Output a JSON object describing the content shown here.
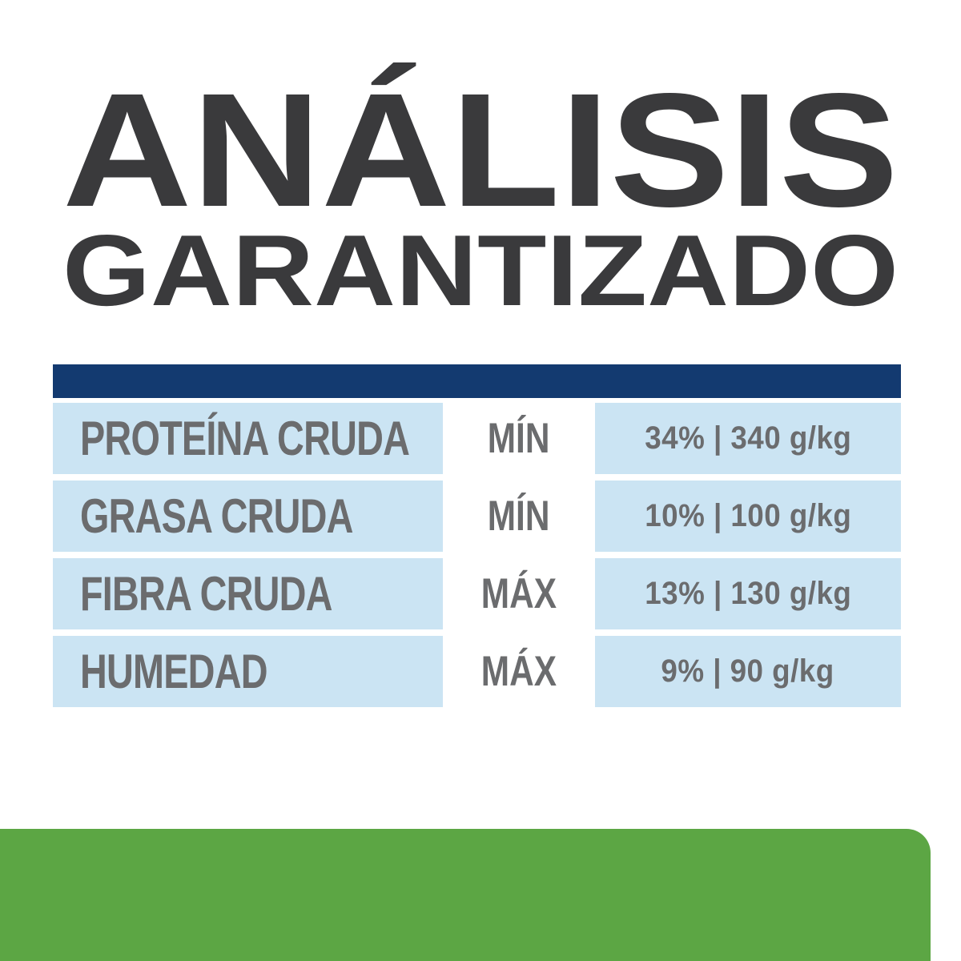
{
  "title": {
    "line1": "ANÁLISIS",
    "line2": "GARANTIZADO"
  },
  "table": {
    "rows": [
      {
        "nutrient": "PROTEÍNA CRUDA",
        "qualifier": "MÍN",
        "value": "34% | 340 g/kg"
      },
      {
        "nutrient": "GRASA CRUDA",
        "qualifier": "MÍN",
        "value": "10% | 100 g/kg"
      },
      {
        "nutrient": "FIBRA CRUDA",
        "qualifier": "MÁX",
        "value": "13% | 130 g/kg"
      },
      {
        "nutrient": "HUMEDAD",
        "qualifier": "MÁX",
        "value": "9% | 90 g/kg"
      }
    ]
  },
  "colors": {
    "navy_header": "#133a70",
    "row_light_blue": "#cbe4f3",
    "green_band": "#5ca644",
    "title_text": "#3a3a3c",
    "table_text": "#6b6c6e",
    "background": "#ffffff"
  }
}
